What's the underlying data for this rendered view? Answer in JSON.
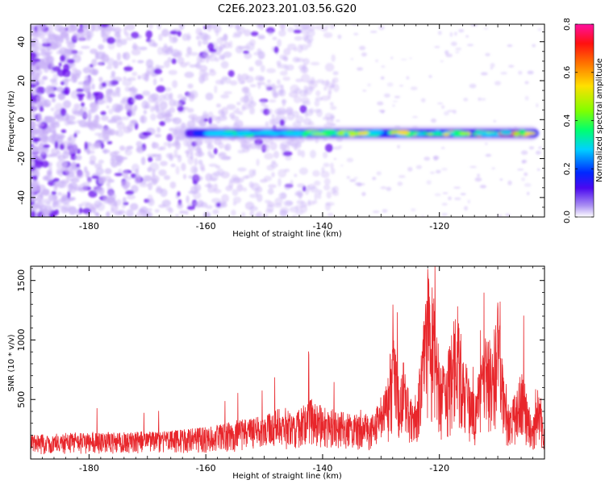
{
  "title": "C2E6.2023.201.03.56.G20",
  "colors": {
    "snr_line": "#e8262b",
    "spec_low": "#c9b2f7",
    "spec_mid": "#6a10ee",
    "spec_high": "#ff2a2a"
  },
  "chart_data": [
    {
      "type": "heatmap",
      "xlabel": "Height of straight line (km)",
      "ylabel": "Frequency (Hz)",
      "xlim": [
        -190,
        -102
      ],
      "ylim": [
        -50,
        49
      ],
      "xticks": [
        -180,
        -160,
        -140,
        -120
      ],
      "xtick_labels": [
        "-180",
        "-160",
        "-140",
        "-120"
      ],
      "yticks": [
        -40,
        -20,
        0,
        20,
        40
      ],
      "ytick_labels": [
        "-40",
        "-20",
        "0",
        "20",
        "40"
      ],
      "grid": false,
      "signal_band": {
        "x_start": -165,
        "x_end": -103,
        "frequency": -7
      },
      "colorbar": {
        "label": "Normalized spectral amplitude",
        "range": [
          0,
          0.8
        ],
        "ticks": [
          0.0,
          0.2,
          0.4,
          0.6,
          0.8
        ],
        "tick_labels": [
          "0.0",
          "0.2",
          "0.4",
          "0.6",
          "0.8"
        ]
      }
    },
    {
      "type": "line",
      "xlabel": "Height of straight line (km)",
      "ylabel": "SNR (10 * v/v)",
      "xlim": [
        -190,
        -102
      ],
      "ylim": [
        0,
        1620
      ],
      "xticks": [
        -180,
        -160,
        -140,
        -120
      ],
      "xtick_labels": [
        "-180",
        "-160",
        "-140",
        "-120"
      ],
      "yticks": [
        500,
        1000,
        1500
      ],
      "ytick_labels": [
        "500",
        "1000",
        "1500"
      ],
      "grid": false,
      "series": [
        {
          "x": [
            -190,
            -185,
            -180,
            -175,
            -170,
            -165,
            -160,
            -157,
            -155,
            -150,
            -147,
            -145,
            -142,
            -140,
            -137,
            -135,
            -133,
            -131,
            -129,
            -128,
            -127,
            -126,
            -125,
            -124,
            -123,
            -122,
            -121,
            -120,
            -119,
            -118,
            -117,
            -116,
            -115,
            -114,
            -113,
            -112,
            -111,
            -110,
            -109,
            -108,
            -107,
            -106,
            -105,
            -104,
            -103,
            -102
          ],
          "y": [
            150,
            160,
            170,
            165,
            175,
            180,
            200,
            220,
            240,
            270,
            330,
            300,
            380,
            330,
            300,
            280,
            280,
            300,
            480,
            820,
            520,
            620,
            380,
            420,
            700,
            1200,
            1050,
            700,
            520,
            800,
            1000,
            700,
            520,
            400,
            580,
            800,
            700,
            1000,
            500,
            300,
            420,
            600,
            400,
            250,
            500,
            200
          ]
        }
      ]
    }
  ]
}
